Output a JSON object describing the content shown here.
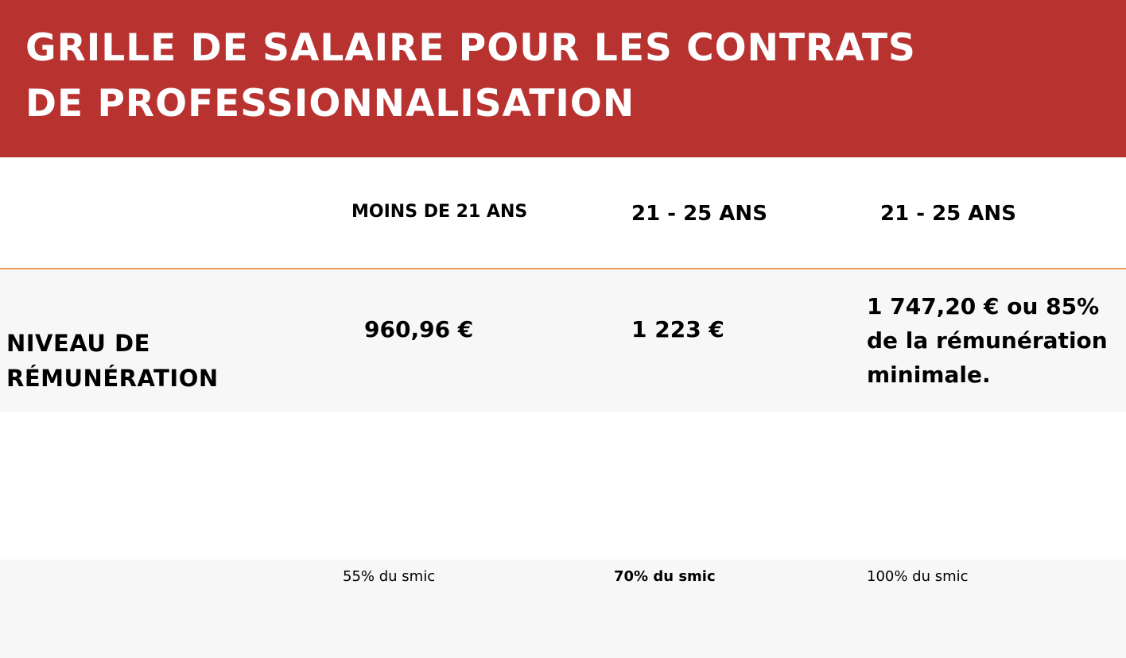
{
  "header": {
    "title": "GRILLE DE SALAIRE POUR LES CONTRATS DE PROFESSIONNALISATION"
  },
  "columns": [
    {
      "label": "MOINS DE 21 ANS"
    },
    {
      "label": "21 - 25 ANS"
    },
    {
      "label": "21 - 25 ANS"
    }
  ],
  "row": {
    "label": "NIVEAU DE RÉMUNÉRATION",
    "values": [
      "960,96 €",
      "1 223 €",
      "1 747,20 € ou 85% de la rémunération minimale."
    ]
  },
  "notes": [
    "55% du smic",
    "70% du smic",
    "100% du smic"
  ],
  "colors": {
    "header_background": "#b83230",
    "divider": "#ef9a55",
    "row_band": "#f7f7f7"
  }
}
